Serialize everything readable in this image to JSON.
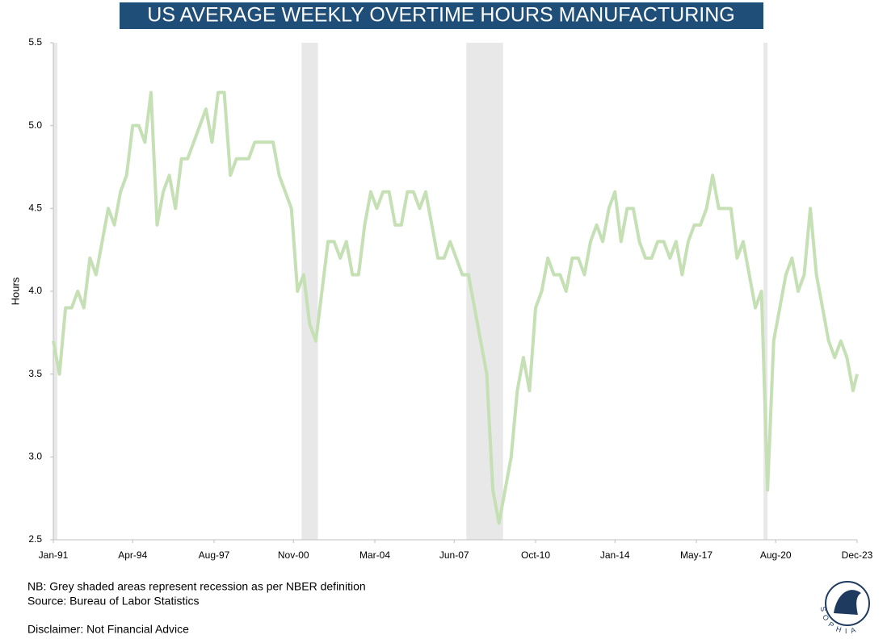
{
  "chart_data": {
    "type": "line",
    "title": "US AVERAGE WEEKLY OVERTIME HOURS MANUFACTURING",
    "y_label": "Hours",
    "notes": [
      "NB: Grey shaded areas represent recession as per NBER definition",
      "Source: Bureau of Labor Statistics"
    ],
    "disclaimer": "Disclaimer: Not Financial Advice",
    "logo_text": "SOPHIA",
    "x": [
      "1991-01",
      "1991-04",
      "1991-07",
      "1991-10",
      "1992-01",
      "1992-04",
      "1992-07",
      "1992-10",
      "1993-01",
      "1993-04",
      "1993-07",
      "1993-10",
      "1994-01",
      "1994-04",
      "1994-07",
      "1994-10",
      "1995-01",
      "1995-04",
      "1995-07",
      "1995-10",
      "1996-01",
      "1996-04",
      "1996-07",
      "1996-10",
      "1997-01",
      "1997-04",
      "1997-07",
      "1997-10",
      "1998-01",
      "1998-04",
      "1998-07",
      "1998-10",
      "1999-01",
      "1999-04",
      "1999-07",
      "1999-10",
      "2000-01",
      "2000-04",
      "2000-07",
      "2000-10",
      "2001-01",
      "2001-04",
      "2001-07",
      "2001-10",
      "2002-01",
      "2002-04",
      "2002-07",
      "2002-10",
      "2003-01",
      "2003-04",
      "2003-07",
      "2003-10",
      "2004-01",
      "2004-04",
      "2004-07",
      "2004-10",
      "2005-01",
      "2005-04",
      "2005-07",
      "2005-10",
      "2006-01",
      "2006-04",
      "2006-07",
      "2006-10",
      "2007-01",
      "2007-04",
      "2007-07",
      "2007-10",
      "2008-01",
      "2008-04",
      "2008-07",
      "2008-10",
      "2009-01",
      "2009-04",
      "2009-07",
      "2009-10",
      "2010-01",
      "2010-04",
      "2010-07",
      "2010-10",
      "2011-01",
      "2011-04",
      "2011-07",
      "2011-10",
      "2012-01",
      "2012-04",
      "2012-07",
      "2012-10",
      "2013-01",
      "2013-04",
      "2013-07",
      "2013-10",
      "2014-01",
      "2014-04",
      "2014-07",
      "2014-10",
      "2015-01",
      "2015-04",
      "2015-07",
      "2015-10",
      "2016-01",
      "2016-04",
      "2016-07",
      "2016-10",
      "2017-01",
      "2017-04",
      "2017-07",
      "2017-10",
      "2018-01",
      "2018-04",
      "2018-07",
      "2018-10",
      "2019-01",
      "2019-04",
      "2019-07",
      "2019-10",
      "2020-01",
      "2020-04",
      "2020-07",
      "2020-10",
      "2021-01",
      "2021-04",
      "2021-07",
      "2021-10",
      "2022-01",
      "2022-04",
      "2022-07",
      "2022-10",
      "2023-01",
      "2023-04",
      "2023-07",
      "2023-10",
      "2023-12"
    ],
    "series": [
      {
        "name": "Average Weekly Overtime Hours",
        "color": "#c5e0b4",
        "values": [
          3.7,
          3.5,
          3.9,
          3.9,
          4.0,
          3.9,
          4.2,
          4.1,
          4.3,
          4.5,
          4.4,
          4.6,
          4.7,
          5.0,
          5.0,
          4.9,
          5.2,
          4.4,
          4.6,
          4.7,
          4.5,
          4.8,
          4.8,
          4.9,
          5.0,
          5.1,
          4.9,
          5.2,
          5.2,
          4.7,
          4.8,
          4.8,
          4.8,
          4.9,
          4.9,
          4.9,
          4.9,
          4.7,
          4.6,
          4.5,
          4.0,
          4.1,
          3.8,
          3.7,
          4.0,
          4.3,
          4.3,
          4.2,
          4.3,
          4.1,
          4.1,
          4.4,
          4.6,
          4.5,
          4.6,
          4.6,
          4.4,
          4.4,
          4.6,
          4.6,
          4.5,
          4.6,
          4.4,
          4.2,
          4.2,
          4.3,
          4.2,
          4.1,
          4.1,
          3.9,
          3.7,
          3.5,
          2.8,
          2.6,
          2.8,
          3.0,
          3.4,
          3.6,
          3.4,
          3.9,
          4.0,
          4.2,
          4.1,
          4.1,
          4.0,
          4.2,
          4.2,
          4.1,
          4.3,
          4.4,
          4.3,
          4.5,
          4.6,
          4.3,
          4.5,
          4.5,
          4.3,
          4.2,
          4.2,
          4.3,
          4.3,
          4.2,
          4.3,
          4.1,
          4.3,
          4.4,
          4.4,
          4.5,
          4.7,
          4.5,
          4.5,
          4.5,
          4.2,
          4.3,
          4.1,
          3.9,
          4.0,
          2.8,
          3.7,
          3.9,
          4.1,
          4.2,
          4.0,
          4.1,
          4.5,
          4.1,
          3.9,
          3.7,
          3.6,
          3.7,
          3.6,
          3.4,
          3.5
        ]
      }
    ],
    "recessions": [
      {
        "start": "1991-01",
        "end": "1991-03"
      },
      {
        "start": "2001-03",
        "end": "2001-11"
      },
      {
        "start": "2007-12",
        "end": "2009-06"
      },
      {
        "start": "2020-02",
        "end": "2020-04"
      }
    ],
    "recession_color": "#e8e8e8",
    "xlim": [
      "1991-01",
      "2023-12"
    ],
    "xticks": [
      {
        "value": "1991-01",
        "label": "Jan-91"
      },
      {
        "value": "1994-04",
        "label": "Apr-94"
      },
      {
        "value": "1997-08",
        "label": "Aug-97"
      },
      {
        "value": "2000-11",
        "label": "Nov-00"
      },
      {
        "value": "2004-03",
        "label": "Mar-04"
      },
      {
        "value": "2007-06",
        "label": "Jun-07"
      },
      {
        "value": "2010-10",
        "label": "Oct-10"
      },
      {
        "value": "2014-01",
        "label": "Jan-14"
      },
      {
        "value": "2017-05",
        "label": "May-17"
      },
      {
        "value": "2020-08",
        "label": "Aug-20"
      },
      {
        "value": "2023-12",
        "label": "Dec-23"
      }
    ],
    "ylim": [
      2.5,
      5.5
    ],
    "yticks": [
      2.5,
      {
        "value": 3,
        "label": "3.0"
      },
      3.5,
      {
        "value": 4,
        "label": "4.0"
      },
      4.5,
      {
        "value": 5,
        "label": "5.0"
      },
      5.5
    ],
    "grid": false
  }
}
